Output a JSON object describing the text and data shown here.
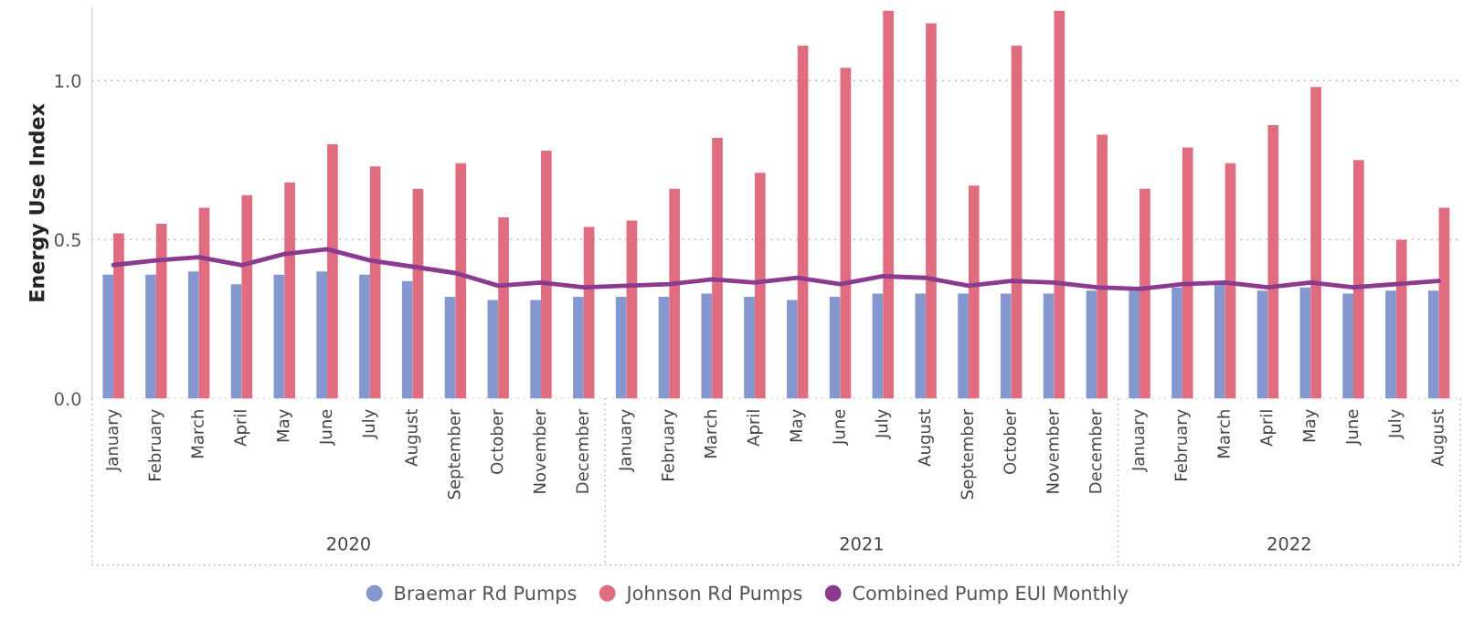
{
  "chart_data": {
    "type": "bar",
    "ylabel": "Energy Use Index",
    "categories": [
      "January",
      "February",
      "March",
      "April",
      "May",
      "June",
      "July",
      "August",
      "September",
      "October",
      "November",
      "December",
      "January",
      "February",
      "March",
      "April",
      "May",
      "June",
      "July",
      "August",
      "September",
      "October",
      "November",
      "December",
      "January",
      "February",
      "March",
      "April",
      "May",
      "June",
      "July",
      "August"
    ],
    "series": [
      {
        "name": "Braemar Rd Pumps",
        "color": "#8497cf",
        "values": [
          0.39,
          0.39,
          0.4,
          0.36,
          0.39,
          0.4,
          0.39,
          0.37,
          0.32,
          0.31,
          0.31,
          0.32,
          0.32,
          0.32,
          0.33,
          0.32,
          0.31,
          0.32,
          0.33,
          0.33,
          0.33,
          0.33,
          0.33,
          0.34,
          0.34,
          0.35,
          0.36,
          0.34,
          0.35,
          0.33,
          0.34,
          0.34
        ]
      },
      {
        "name": "Johnson Rd Pumps",
        "color": "#e06c7f",
        "values": [
          0.52,
          0.55,
          0.6,
          0.64,
          0.68,
          0.8,
          0.73,
          0.66,
          0.74,
          0.57,
          0.78,
          0.54,
          0.56,
          0.66,
          0.82,
          0.71,
          1.11,
          1.04,
          1.22,
          1.18,
          0.67,
          1.11,
          1.22,
          0.83,
          0.66,
          0.79,
          0.74,
          0.86,
          0.98,
          0.75,
          0.5,
          0.6
        ]
      },
      {
        "name": "Combined Pump EUI Monthly",
        "type": "line",
        "color": "#8b3a8f",
        "values": [
          0.42,
          0.435,
          0.445,
          0.42,
          0.455,
          0.47,
          0.435,
          0.415,
          0.395,
          0.355,
          0.365,
          0.35,
          0.355,
          0.36,
          0.375,
          0.365,
          0.38,
          0.36,
          0.385,
          0.38,
          0.355,
          0.37,
          0.365,
          0.35,
          0.345,
          0.36,
          0.365,
          0.35,
          0.365,
          0.35,
          0.36,
          0.37
        ]
      }
    ],
    "annotations": [
      "2020",
      "2021",
      "2022"
    ],
    "ylim": [
      0,
      1.23
    ],
    "yticks": [
      {
        "value": 0,
        "label": "0.0"
      },
      {
        "value": 0.5,
        "label": "0.5"
      },
      {
        "value": 1.0,
        "label": "1.0"
      }
    ],
    "grid": "y",
    "legend": "bottom",
    "marker": "none",
    "line_style": "solid"
  }
}
